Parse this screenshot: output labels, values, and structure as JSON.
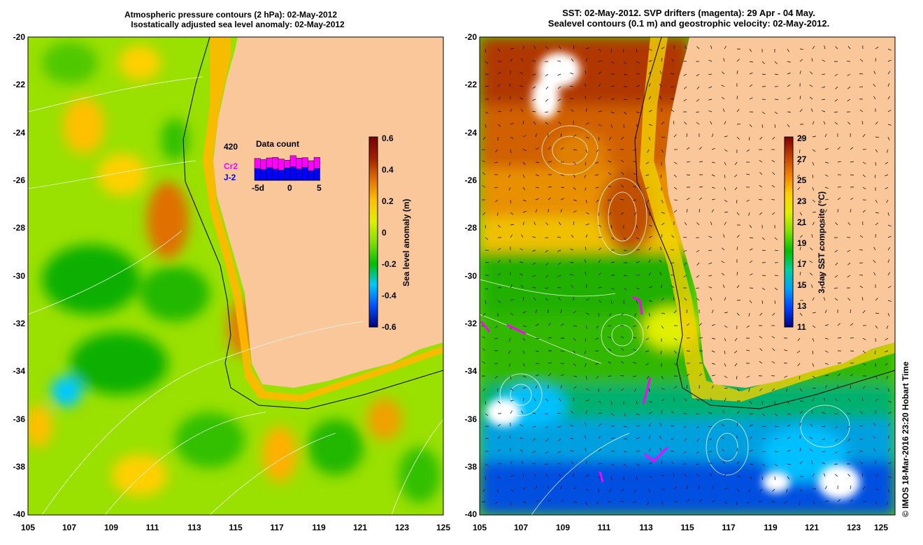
{
  "left_map": {
    "title_line1": "Atmospheric pressure contours (2 hPa): 02-May-2012",
    "title_line2": "Isostatically adjusted sea level anomaly: 02-May-2012",
    "y_ticks": [
      "-20",
      "-22",
      "-24",
      "-26",
      "-28",
      "-30",
      "-32",
      "-34",
      "-36",
      "-38",
      "-40"
    ],
    "x_ticks": [
      "105",
      "107",
      "109",
      "111",
      "113",
      "115",
      "117",
      "119",
      "121",
      "123",
      "125"
    ],
    "colorbar": {
      "label": "Sea level anomaly (m)",
      "ticks": [
        "0.6",
        "0.4",
        "0.2",
        "0",
        "-0.2",
        "-0.4",
        "-0.6"
      ]
    },
    "data_count": {
      "title": "Data count",
      "max_label": "420",
      "series": [
        "Cr2",
        "J-2"
      ],
      "axis_ticks": [
        "-5d",
        "0",
        "5"
      ],
      "counts_top": [
        0.78,
        0.74,
        0.8,
        0.82,
        0.76,
        0.72,
        0.88,
        0.79,
        0.81,
        0.7,
        0.82
      ],
      "counts_bottom": [
        0.42,
        0.38,
        0.45,
        0.4,
        0.36,
        0.44,
        0.48,
        0.4,
        0.46,
        0.34,
        0.42
      ]
    }
  },
  "right_map": {
    "title_line1": "SST: 02-May-2012. SVP drifters (magenta): 29 Apr - 04 May.",
    "title_line2": "Sealevel contours (0.1 m) and geostrophic velocity: 02-May-2012.",
    "y_ticks": [
      "-20",
      "-22",
      "-24",
      "-26",
      "-28",
      "-30",
      "-32",
      "-34",
      "-36",
      "-38",
      "-40"
    ],
    "x_ticks": [
      "105",
      "107",
      "109",
      "111",
      "113",
      "115",
      "117",
      "119",
      "121",
      "123",
      "125"
    ],
    "colorbar": {
      "label": "3-day SST composite (°C)",
      "ticks": [
        "29",
        "27",
        "25",
        "23",
        "21",
        "19",
        "17",
        "15",
        "13",
        "11"
      ]
    }
  },
  "credit": "© IMOS 18-Mar-2016 23:20 Hobart Time",
  "colors": {
    "land": "#f9c79a",
    "sla_ramp": [
      "#00007a",
      "#0050ff",
      "#00c8ff",
      "#00c000",
      "#80e000",
      "#e0f000",
      "#ffc000",
      "#e07000",
      "#a02000",
      "#780000"
    ],
    "sst_ramp": [
      "#000080",
      "#0040ff",
      "#00a0ff",
      "#00d0a0",
      "#00c000",
      "#80e000",
      "#e0f000",
      "#ffd000",
      "#f08000",
      "#c04000",
      "#800000"
    ],
    "drifter": "#ff00ff"
  }
}
